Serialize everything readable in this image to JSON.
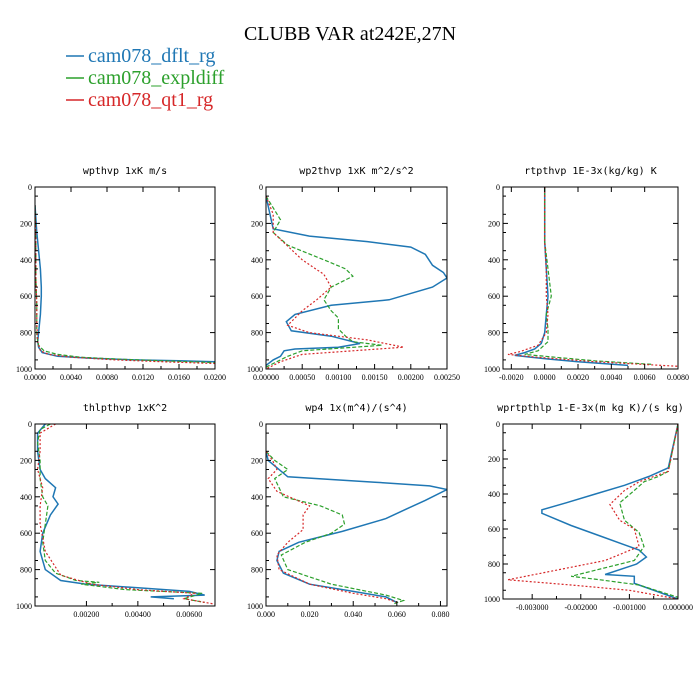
{
  "figure": {
    "title": "CLUBB VAR at242E,27N",
    "legend": [
      {
        "name": "cam078_dflt_rg",
        "color": "#1f77b4"
      },
      {
        "name": "cam078_expldiff",
        "color": "#2ca02c"
      },
      {
        "name": "cam078_qt1_rg",
        "color": "#d62728"
      }
    ]
  },
  "chart_data": [
    {
      "type": "line",
      "title": "wpthvp   1xK m/s",
      "xlim": [
        0,
        0.02
      ],
      "ylim": [
        0,
        1000
      ],
      "xticks": [
        0,
        0.004,
        0.008,
        0.012,
        0.016,
        0.02
      ],
      "xtick_labels": [
        "0.0000",
        "0.0040",
        "0.0080",
        "0.0120",
        "0.0160",
        "0.0200"
      ],
      "yticks": [
        0,
        200,
        400,
        600,
        800,
        1000
      ],
      "ytick_labels": [
        "0",
        "200",
        "400",
        "600",
        "800",
        "1000"
      ],
      "y_inverted": true,
      "series": [
        {
          "name": "cam078_dflt_rg",
          "x": [
            0,
            0.0002,
            0.0004,
            0.0006,
            0.0007,
            0.0007,
            0.0006,
            0.0004,
            0.0003,
            0.0004,
            0.0008,
            0.0025,
            0.006,
            0.011,
            0.016,
            0.02
          ],
          "y": [
            100,
            250,
            350,
            450,
            550,
            600,
            700,
            800,
            850,
            880,
            910,
            930,
            940,
            950,
            955,
            960
          ]
        },
        {
          "name": "cam078_expldiff",
          "x": [
            0,
            0.0001,
            0.0001,
            0.0002,
            0.0002,
            0.0002,
            0.0004,
            0.001,
            0.0025,
            0.005,
            0.009,
            0.014,
            0.02
          ],
          "y": [
            100,
            300,
            500,
            650,
            750,
            820,
            870,
            900,
            920,
            935,
            945,
            955,
            965
          ]
        },
        {
          "name": "cam078_qt1_rg",
          "x": [
            0,
            0.0001,
            0.0001,
            0.0002,
            0.0002,
            0.0003,
            0.0006,
            0.0015,
            0.004,
            0.009,
            0.014,
            0.02
          ],
          "y": [
            100,
            300,
            500,
            650,
            750,
            850,
            900,
            920,
            935,
            950,
            960,
            970
          ]
        }
      ]
    },
    {
      "type": "line",
      "title": "wp2thvp   1xK m^2/s^2",
      "xlim": [
        0,
        0.0025
      ],
      "ylim": [
        0,
        1000
      ],
      "xticks": [
        0,
        0.0005,
        0.001,
        0.0015,
        0.002,
        0.0025
      ],
      "xtick_labels": [
        "0.00000",
        "0.00050",
        "0.00100",
        "0.00150",
        "0.00200",
        "0.00250"
      ],
      "yticks": [
        0,
        200,
        400,
        600,
        800,
        1000
      ],
      "ytick_labels": [
        "0",
        "200",
        "400",
        "600",
        "800",
        "1000"
      ],
      "y_inverted": true,
      "series": [
        {
          "name": "cam078_dflt_rg",
          "x": [
            0,
            0.0001,
            0.0006,
            0.0014,
            0.002,
            0.0022,
            0.0023,
            0.00245,
            0.0025,
            0.0023,
            0.0017,
            0.0009,
            0.0004,
            0.00028,
            0.00035,
            0.0009,
            0.0013,
            0.001,
            0.0004,
            0.00025,
            0.0002,
            0.0001,
            0
          ],
          "y": [
            50,
            230,
            270,
            300,
            330,
            370,
            430,
            470,
            500,
            550,
            620,
            650,
            700,
            740,
            790,
            820,
            860,
            880,
            890,
            900,
            930,
            950,
            980
          ]
        },
        {
          "name": "cam078_expldiff",
          "x": [
            0,
            0.0002,
            0.0001,
            0.0003,
            0.0008,
            0.0011,
            0.0012,
            0.0009,
            0.0008,
            0.0009,
            0.001,
            0.001,
            0.0011,
            0.0012,
            0.0016,
            0.0005,
            0.0003,
            0.00015,
            0
          ],
          "y": [
            50,
            180,
            250,
            320,
            400,
            450,
            490,
            550,
            620,
            680,
            720,
            780,
            820,
            850,
            870,
            900,
            930,
            960,
            990
          ]
        },
        {
          "name": "cam078_qt1_rg",
          "x": [
            0,
            0.0001,
            0.0001,
            0.0005,
            0.0008,
            0.0009,
            0.0007,
            0.0005,
            0.0004,
            0.0003,
            0.0006,
            0.0014,
            0.0019,
            0.0005,
            0.0002,
            0
          ],
          "y": [
            50,
            150,
            250,
            400,
            480,
            550,
            620,
            680,
            720,
            760,
            800,
            840,
            880,
            920,
            960,
            1000
          ]
        }
      ]
    },
    {
      "type": "line",
      "title": "rtpthvp   1E-3x(kg/kg) K",
      "xlim": [
        -0.0025,
        0.008
      ],
      "ylim": [
        0,
        1000
      ],
      "xticks": [
        -0.002,
        0,
        0.002,
        0.004,
        0.006,
        0.008
      ],
      "xtick_labels": [
        "-0.0020",
        "0.0000",
        "0.0020",
        "0.0040",
        "0.0060",
        "0.0080"
      ],
      "yticks": [
        0,
        200,
        400,
        600,
        800,
        1000
      ],
      "ytick_labels": [
        "0",
        "200",
        "400",
        "600",
        "800",
        "1000"
      ],
      "y_inverted": true,
      "series": [
        {
          "name": "cam078_dflt_rg",
          "x": [
            0,
            0,
            0.0001,
            0.0002,
            0.0001,
            0,
            -0.0002,
            -0.0006,
            -0.0012,
            -0.0018,
            -0.0008,
            0.0002,
            0.002,
            0.005
          ],
          "y": [
            0,
            300,
            450,
            600,
            700,
            800,
            860,
            890,
            910,
            925,
            935,
            945,
            960,
            980
          ]
        },
        {
          "name": "cam078_expldiff",
          "x": [
            0,
            0,
            0.0002,
            0.0004,
            0.0001,
            0.0002,
            0.0002,
            -0.0004,
            -0.0012,
            0.0006,
            0.003,
            0.0065
          ],
          "y": [
            0,
            300,
            450,
            600,
            700,
            780,
            850,
            900,
            920,
            935,
            955,
            975
          ]
        },
        {
          "name": "cam078_qt1_rg",
          "x": [
            0,
            0,
            0.0001,
            0.0001,
            0.0002,
            0.0001,
            -0.0004,
            -0.0015,
            -0.0022,
            -0.0005,
            0.003,
            0.008
          ],
          "y": [
            0,
            300,
            450,
            600,
            700,
            800,
            870,
            905,
            920,
            935,
            960,
            985
          ]
        }
      ]
    },
    {
      "type": "line",
      "title": "thlpthvp   1xK^2",
      "xlim": [
        0,
        0.007
      ],
      "ylim": [
        0,
        1000
      ],
      "xticks": [
        0.002,
        0.004,
        0.006
      ],
      "xtick_labels": [
        "0.00200",
        "0.00400",
        "0.00600"
      ],
      "yticks": [
        0,
        200,
        400,
        600,
        800,
        1000
      ],
      "ytick_labels": [
        "0",
        "200",
        "400",
        "600",
        "800",
        "1000"
      ],
      "y_inverted": true,
      "series": [
        {
          "name": "cam078_dflt_rg",
          "x": [
            0.0004,
            0.0001,
            0.0001,
            0.0002,
            0.0004,
            0.0008,
            0.0007,
            0.0009,
            0.0006,
            0.0003,
            0.0002,
            0.0004,
            0.001,
            0.002,
            0.004,
            0.006,
            0.0066,
            0.0045,
            0.0054
          ],
          "y": [
            0,
            50,
            150,
            250,
            300,
            350,
            400,
            440,
            500,
            600,
            700,
            800,
            860,
            880,
            900,
            920,
            940,
            950,
            960
          ]
        },
        {
          "name": "cam078_expldiff",
          "x": [
            0.0006,
            0.0002,
            0.0001,
            0.0002,
            0.0002,
            0.0003,
            0.0005,
            0.0004,
            0.0003,
            0.0004,
            0.0008,
            0.0016,
            0.0025,
            0.0018,
            0.0035,
            0.0065,
            0.0058,
            0.0066
          ],
          "y": [
            0,
            30,
            100,
            200,
            300,
            400,
            450,
            550,
            650,
            750,
            820,
            860,
            870,
            880,
            910,
            930,
            960,
            980
          ]
        },
        {
          "name": "cam078_qt1_rg",
          "x": [
            0.0008,
            0.0002,
            0.0002,
            0.0001,
            0.0003,
            0.0002,
            0.0002,
            0.0004,
            0.001,
            0.0022,
            0.004,
            0.0062,
            0.0058,
            0.007
          ],
          "y": [
            0,
            50,
            150,
            250,
            350,
            450,
            550,
            700,
            830,
            880,
            910,
            930,
            960,
            990
          ]
        }
      ]
    },
    {
      "type": "line",
      "title": "wp4   1x(m^4)/(s^4)",
      "xlim": [
        0,
        0.083
      ],
      "ylim": [
        0,
        1000
      ],
      "xticks": [
        0,
        0.02,
        0.04,
        0.06,
        0.08
      ],
      "xtick_labels": [
        "0.000",
        "0.020",
        "0.040",
        "0.060",
        "0.080"
      ],
      "yticks": [
        0,
        200,
        400,
        600,
        800,
        1000
      ],
      "ytick_labels": [
        "0",
        "200",
        "400",
        "600",
        "800",
        "1000"
      ],
      "y_inverted": true,
      "series": [
        {
          "name": "cam078_dflt_rg",
          "x": [
            0,
            0.001,
            0.01,
            0.05,
            0.075,
            0.083,
            0.073,
            0.062,
            0.055,
            0.035,
            0.015,
            0.006,
            0.005,
            0.008,
            0.02,
            0.04,
            0.055,
            0.06
          ],
          "y": [
            150,
            200,
            290,
            320,
            340,
            360,
            420,
            480,
            520,
            590,
            650,
            700,
            750,
            820,
            880,
            920,
            950,
            980
          ]
        },
        {
          "name": "cam078_expldiff",
          "x": [
            0,
            0.004,
            0.01,
            0.004,
            0.008,
            0.025,
            0.035,
            0.036,
            0.03,
            0.018,
            0.007,
            0.01,
            0.03,
            0.055,
            0.063,
            0.058
          ],
          "y": [
            150,
            200,
            250,
            300,
            400,
            450,
            500,
            550,
            600,
            650,
            720,
            800,
            880,
            940,
            970,
            990
          ]
        },
        {
          "name": "cam078_qt1_rg",
          "x": [
            0,
            0.003,
            0.005,
            0.001,
            0.005,
            0.02,
            0.017,
            0.017,
            0.01,
            0.005,
            0.006,
            0.02,
            0.04,
            0.055,
            0.06
          ],
          "y": [
            150,
            200,
            250,
            300,
            370,
            450,
            500,
            580,
            650,
            720,
            800,
            880,
            930,
            960,
            980
          ]
        }
      ]
    },
    {
      "type": "line",
      "title": "wprtpthlp   1-E-3x(m kg K)/(s kg)",
      "xlim": [
        -0.0036,
        0
      ],
      "ylim": [
        0,
        1000
      ],
      "xticks": [
        -0.003,
        -0.002,
        -0.001,
        0
      ],
      "xtick_labels": [
        "-0.003000",
        "-0.002000",
        "-0.001000",
        "0.000000"
      ],
      "yticks": [
        0,
        200,
        400,
        600,
        800,
        1000
      ],
      "ytick_labels": [
        "0",
        "200",
        "400",
        "600",
        "800",
        "1000"
      ],
      "y_inverted": true,
      "series": [
        {
          "name": "cam078_dflt_rg",
          "x": [
            0,
            -0.0002,
            -0.0006,
            -0.0011,
            -0.0017,
            -0.0023,
            -0.0028,
            -0.0028,
            -0.0022,
            -0.0016,
            -0.0011,
            -0.0008,
            -0.00065,
            -0.00085,
            -0.0015,
            -0.0009,
            -0.0009,
            -0.0004,
            0
          ],
          "y": [
            0,
            250,
            300,
            350,
            400,
            450,
            490,
            510,
            580,
            640,
            690,
            720,
            760,
            800,
            860,
            870,
            910,
            960,
            1000
          ]
        },
        {
          "name": "cam078_expldiff",
          "x": [
            0,
            -0.0002,
            -0.0004,
            -0.0007,
            -0.0009,
            -0.0012,
            -0.0011,
            -0.0008,
            -0.0007,
            -0.0009,
            -0.0022,
            -0.0016,
            -0.0008,
            0
          ],
          "y": [
            0,
            270,
            300,
            330,
            380,
            450,
            550,
            620,
            700,
            780,
            870,
            890,
            920,
            990
          ]
        },
        {
          "name": "cam078_qt1_rg",
          "x": [
            0,
            -0.0002,
            -0.0005,
            -0.0008,
            -0.0011,
            -0.0014,
            -0.0012,
            -0.0009,
            -0.0008,
            -0.0015,
            -0.0035,
            -0.0022,
            -0.001,
            0
          ],
          "y": [
            0,
            270,
            300,
            330,
            380,
            460,
            550,
            600,
            700,
            780,
            890,
            920,
            950,
            1000
          ]
        }
      ]
    }
  ]
}
